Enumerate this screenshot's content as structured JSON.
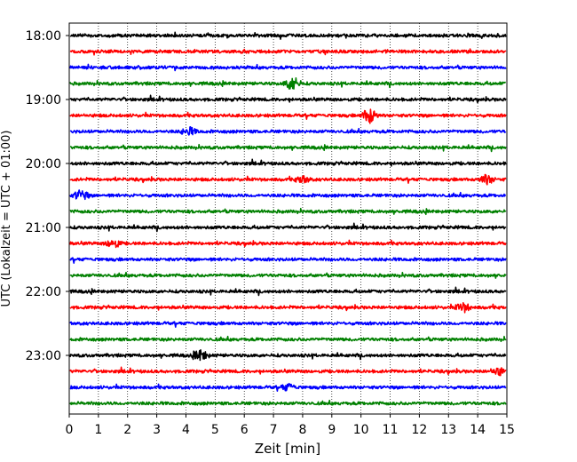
{
  "chart_data": {
    "type": "line",
    "title": "",
    "xlabel": "Zeit  [min]",
    "ylabel": "UTC (Lokalzeit = UTC + 01:00)",
    "xlim": [
      0,
      15
    ],
    "x_ticks": [
      "0",
      "1",
      "2",
      "3",
      "4",
      "5",
      "6",
      "7",
      "8",
      "9",
      "10",
      "11",
      "12",
      "13",
      "14",
      "15"
    ],
    "y_ticks": [
      "18:00",
      "19:00",
      "20:00",
      "21:00",
      "22:00",
      "23:00"
    ],
    "grid": "vertical dotted",
    "row_count": 24,
    "row_start": "18:00",
    "row_interval_min": 15,
    "colors": [
      "#000000",
      "#ff0000",
      "#0000ff",
      "#008000"
    ],
    "events": [
      {
        "row": 3,
        "x": 7.65,
        "amp": 2.6
      },
      {
        "row": 5,
        "x": 10.3,
        "amp": 2.8
      },
      {
        "row": 6,
        "x": 4.1,
        "amp": 1.4
      },
      {
        "row": 9,
        "x": 8.0,
        "amp": 1.2
      },
      {
        "row": 9,
        "x": 14.3,
        "amp": 1.6
      },
      {
        "row": 10,
        "x": 0.4,
        "amp": 1.8
      },
      {
        "row": 13,
        "x": 1.5,
        "amp": 1.6
      },
      {
        "row": 17,
        "x": 13.5,
        "amp": 1.6
      },
      {
        "row": 20,
        "x": 4.5,
        "amp": 1.8
      },
      {
        "row": 21,
        "x": 14.7,
        "amp": 1.4
      },
      {
        "row": 22,
        "x": 7.5,
        "amp": 1.2
      }
    ]
  }
}
